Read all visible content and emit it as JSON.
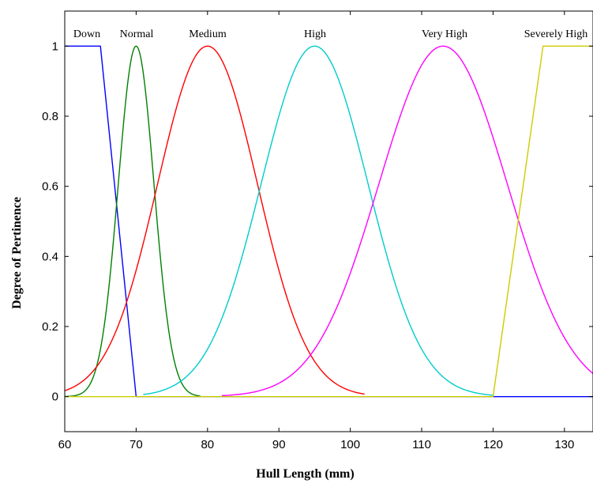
{
  "chart_data": {
    "type": "line",
    "title": "",
    "xlabel": "Hull Length (mm)",
    "ylabel": "Degree of Pertinence",
    "xlim": [
      60,
      134
    ],
    "ylim": [
      -0.1,
      1.1
    ],
    "xticks": [
      60,
      70,
      80,
      90,
      100,
      110,
      120,
      130
    ],
    "yticks": [
      0,
      0.2,
      0.4,
      0.6,
      0.8,
      1
    ],
    "ytick_labels": [
      "0",
      "0.2",
      "0.4",
      "0.6",
      "0.8",
      "1"
    ],
    "grid": false,
    "legend": "none",
    "series": [
      {
        "name": "Down",
        "color": "#0000ff",
        "shape": "trapezoid",
        "x": [
          60,
          65,
          70,
          134
        ],
        "y": [
          1,
          1,
          0,
          0
        ]
      },
      {
        "name": "Normal",
        "color": "#008000",
        "shape": "gaussian",
        "center": 70,
        "sigma": 2.5,
        "x_range": [
          60,
          79
        ]
      },
      {
        "name": "Medium",
        "color": "#ff0000",
        "shape": "gaussian",
        "center": 80,
        "sigma": 7.0,
        "x_range": [
          60,
          102
        ]
      },
      {
        "name": "High",
        "color": "#00cccc",
        "shape": "gaussian",
        "center": 95,
        "sigma": 7.5,
        "x_range": [
          71,
          120
        ]
      },
      {
        "name": "Very High",
        "color": "#ff00ff",
        "shape": "gaussian",
        "center": 113,
        "sigma": 9.0,
        "x_range": [
          82,
          134
        ]
      },
      {
        "name": "Severely High",
        "color": "#cccc00",
        "shape": "trapezoid",
        "x": [
          60,
          120,
          127,
          134
        ],
        "y": [
          0,
          0,
          1,
          1
        ]
      }
    ]
  }
}
